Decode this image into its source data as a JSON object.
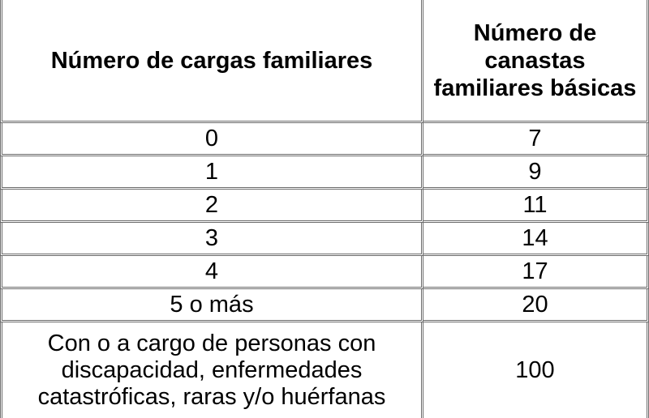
{
  "table": {
    "headers": {
      "dependents": "Número de cargas familiares",
      "baskets": "Número de canastas familiares básicas"
    },
    "rows": [
      {
        "dependents": "0",
        "baskets": "7"
      },
      {
        "dependents": "1",
        "baskets": "9"
      },
      {
        "dependents": "2",
        "baskets": "11"
      },
      {
        "dependents": "3",
        "baskets": "14"
      },
      {
        "dependents": "4",
        "baskets": "17"
      },
      {
        "dependents": "5 o más",
        "baskets": "20"
      },
      {
        "dependents": "Con o a cargo de personas con discapacidad, enfermedades catastróficas, raras y/o huérfanas",
        "baskets": "100"
      }
    ]
  }
}
